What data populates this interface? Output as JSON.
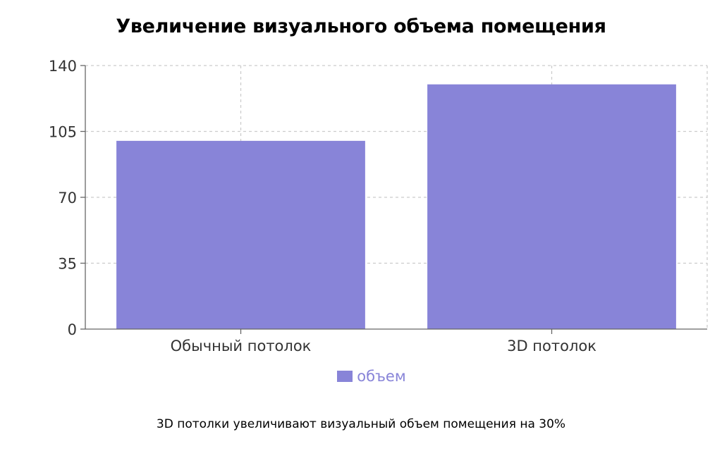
{
  "chart_data": {
    "type": "bar",
    "title": "Увеличение визуального объема помещения",
    "categories": [
      "Обычный потолок",
      "3D потолок"
    ],
    "series": [
      {
        "name": "объем",
        "values": [
          100,
          130
        ]
      }
    ],
    "yticks": [
      "0",
      "35",
      "70",
      "105",
      "140"
    ],
    "ylim": [
      0,
      140
    ],
    "xlabel": "",
    "ylabel": "",
    "grid": true,
    "legend": "bottom",
    "colors": {
      "bar": "#8884d8",
      "grid": "#cccccc",
      "axis": "#666666",
      "legend_text": "#8884d8"
    }
  },
  "footnote": "3D потолки увеличивают визуальный объем помещения на 30%"
}
